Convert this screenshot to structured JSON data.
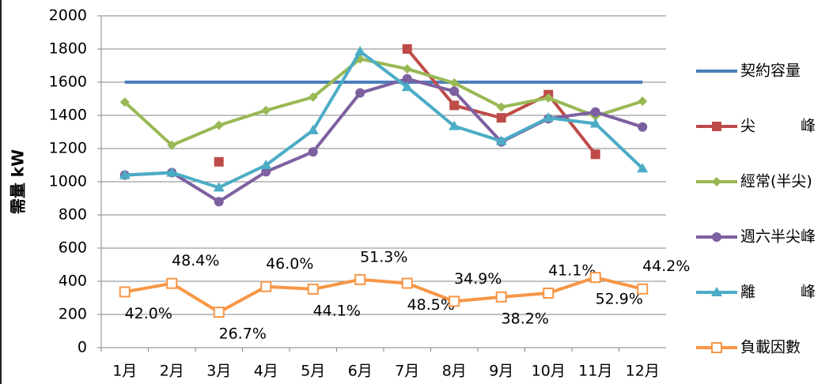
{
  "chart_data": {
    "type": "line",
    "y_label": "需量 kW",
    "categories": [
      "1月",
      "2月",
      "3月",
      "4月",
      "5月",
      "6月",
      "7月",
      "8月",
      "9月",
      "10月",
      "11月",
      "12月"
    ],
    "ylim": [
      0,
      2000
    ],
    "yticks": [
      0,
      200,
      400,
      600,
      800,
      1000,
      1200,
      1400,
      1600,
      1800,
      2000
    ],
    "y2lim": [
      0,
      250
    ],
    "grid": true,
    "legend": "right",
    "series": [
      {
        "name": "契約容量",
        "color": "#4a7ebb",
        "marker": "none",
        "values": [
          1600,
          1600,
          1600,
          1600,
          1600,
          1600,
          1600,
          1600,
          1600,
          1600,
          1600,
          1600
        ]
      },
      {
        "name": "尖　　　峰",
        "color": "#be4b48",
        "marker": "square",
        "values": [
          null,
          null,
          1120,
          null,
          null,
          null,
          1800,
          1460,
          1385,
          1525,
          1165,
          null
        ]
      },
      {
        "name": "經常(半尖)",
        "color": "#98b954",
        "marker": "diamond",
        "values": [
          1480,
          1220,
          1340,
          1430,
          1510,
          1740,
          1680,
          1595,
          1450,
          1505,
          1395,
          1485
        ]
      },
      {
        "name": "週六半尖峰",
        "color": "#7d60a0",
        "marker": "circle",
        "values": [
          1040,
          1055,
          880,
          1060,
          1180,
          1535,
          1620,
          1545,
          1240,
          1380,
          1420,
          1330
        ]
      },
      {
        "name": "離　　　峰",
        "color": "#4bacc6",
        "marker": "triangle",
        "values": [
          1040,
          1055,
          965,
          1100,
          1310,
          1785,
          1570,
          1335,
          1245,
          1385,
          1350,
          1080
        ]
      },
      {
        "name": "負載因數",
        "color": "#f79646",
        "marker": "hollow-square",
        "axis": "y2",
        "values": [
          42.0,
          48.4,
          26.7,
          46.0,
          44.1,
          51.3,
          48.5,
          34.9,
          38.2,
          41.1,
          52.9,
          44.2
        ],
        "value_labels": [
          "42.0%",
          "48.4%",
          "26.7%",
          "46.0%",
          "44.1%",
          "51.3%",
          "48.5%",
          "34.9%",
          "38.2%",
          "41.1%",
          "52.9%",
          "44.2%"
        ]
      }
    ]
  }
}
